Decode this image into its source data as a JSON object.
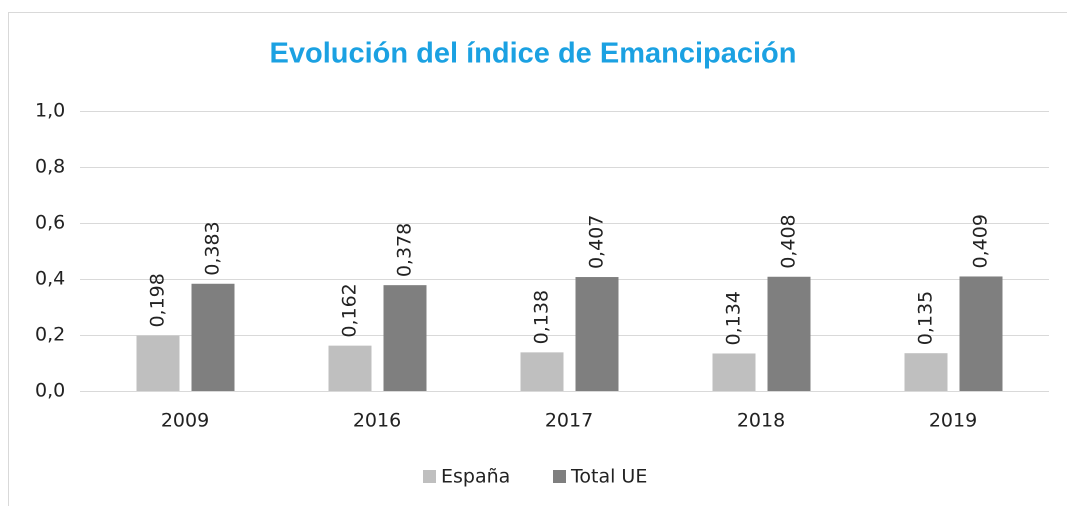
{
  "chart_data": {
    "type": "bar",
    "title": "Evolución del índice de Emancipación",
    "categories": [
      "2009",
      "2016",
      "2017",
      "2018",
      "2019"
    ],
    "series": [
      {
        "name": "España",
        "color": "#bfbfbf",
        "values": [
          0.198,
          0.162,
          0.138,
          0.134,
          0.135
        ],
        "value_labels": [
          "0,198",
          "0,162",
          "0,138",
          "0,134",
          "0,135"
        ]
      },
      {
        "name": "Total UE",
        "color": "#7f7f7f",
        "values": [
          0.383,
          0.378,
          0.407,
          0.408,
          0.409
        ],
        "value_labels": [
          "0,383",
          "0,378",
          "0,407",
          "0,408",
          "0,409"
        ]
      }
    ],
    "ylim": [
      0,
      1
    ],
    "yticks": [
      {
        "value": 0,
        "label": "0,0"
      },
      {
        "value": 0.2,
        "label": "0,2"
      },
      {
        "value": 0.4,
        "label": "0,4"
      },
      {
        "value": 0.6,
        "label": "0,6"
      },
      {
        "value": 0.8,
        "label": "0,8"
      },
      {
        "value": 1,
        "label": "1,0"
      }
    ],
    "grid": true,
    "legend": "bottom"
  }
}
